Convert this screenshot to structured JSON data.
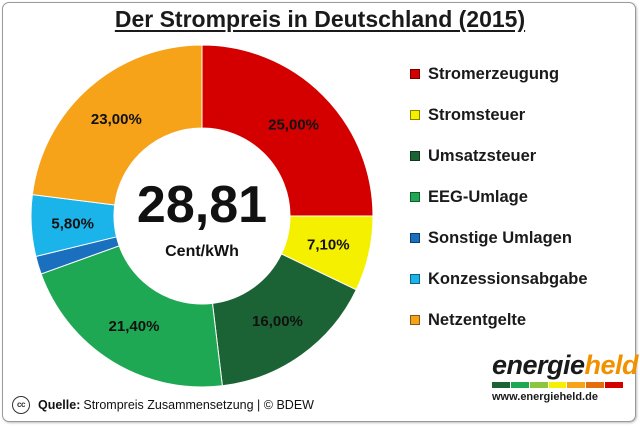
{
  "chart_data": {
    "type": "pie",
    "title": "Der Strompreis in Deutschland (2015)",
    "center_value": "28,81",
    "center_unit": "Cent/kWh",
    "slices": [
      {
        "name": "Stromerzeugung",
        "value": 25.0,
        "label": "25,00%",
        "color": "#d40000"
      },
      {
        "name": "Stromsteuer",
        "value": 7.1,
        "label": "7,10%",
        "color": "#f5f000"
      },
      {
        "name": "Umsatzsteuer",
        "value": 16.0,
        "label": "16,00%",
        "color": "#1b6334"
      },
      {
        "name": "EEG-Umlage",
        "value": 21.4,
        "label": "21,40%",
        "color": "#1fa853"
      },
      {
        "name": "Sonstige Umlagen",
        "value": 1.7,
        "label": "",
        "color": "#1b6fbf"
      },
      {
        "name": "Konzessionsabgabe",
        "value": 5.8,
        "label": "5,80%",
        "color": "#1ab3ea"
      },
      {
        "name": "Netzentgelte",
        "value": 23.0,
        "label": "23,00%",
        "color": "#f6a31a"
      }
    ]
  },
  "footer": {
    "cc_label": "cc",
    "source_key": "Quelle:",
    "source_text": "Strompreis Zusammensetzung | © BDEW"
  },
  "brand": {
    "name_a": "energie",
    "name_b": "held",
    "url": "www.energieheld.de",
    "bar_colors": [
      "#1b6334",
      "#1fa853",
      "#8cc63f",
      "#f5f000",
      "#f6a31a",
      "#e46c0a",
      "#d40000"
    ]
  }
}
